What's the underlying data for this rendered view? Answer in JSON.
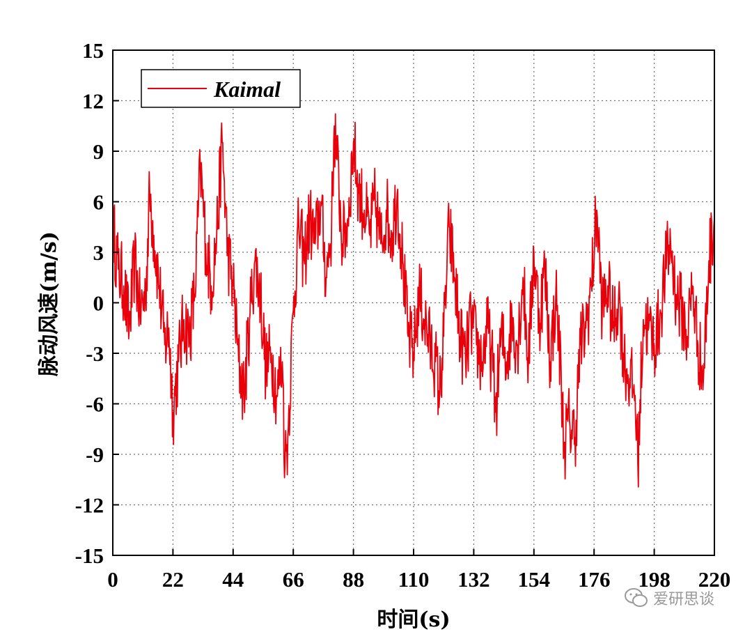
{
  "chart_data": {
    "type": "line",
    "title": "",
    "xlabel": "时间(s)",
    "ylabel": "脉动风速(m/s)",
    "xlim": [
      0,
      220
    ],
    "ylim": [
      -15,
      15
    ],
    "xticks": [
      0,
      22,
      44,
      66,
      88,
      110,
      132,
      154,
      176,
      198,
      220
    ],
    "yticks": [
      15,
      12,
      9,
      6,
      3,
      0,
      -3,
      -6,
      -9,
      -12,
      -15
    ],
    "grid": true,
    "legend_position": "top-left",
    "series": [
      {
        "name": "Kaimal",
        "color": "#e8000b",
        "x": [
          0,
          2,
          4,
          6,
          8,
          10,
          12,
          13.5,
          15,
          17,
          19,
          20.5,
          22,
          24,
          26,
          28,
          30,
          32,
          34,
          36,
          38,
          40,
          42,
          44,
          46,
          48,
          50,
          52,
          54,
          56,
          58,
          60,
          62,
          63,
          64,
          66,
          68,
          70,
          72,
          74,
          76,
          78,
          80,
          81,
          82,
          84,
          86,
          88,
          90,
          92,
          94,
          96,
          98,
          100,
          102,
          104,
          106,
          108,
          110,
          112,
          114,
          116,
          118,
          119.5,
          121,
          123,
          125,
          127,
          129,
          131,
          133,
          135,
          137,
          139,
          140,
          142,
          144,
          146,
          148,
          150,
          152,
          154,
          156,
          158,
          160,
          162,
          164,
          165,
          167,
          169,
          171,
          173,
          175,
          177,
          179,
          181,
          183,
          185,
          187,
          189,
          191,
          192,
          194,
          196,
          198,
          200,
          202,
          204,
          206,
          208,
          210,
          212,
          214,
          216,
          218,
          220
        ],
        "values": [
          4.5,
          2.0,
          1.0,
          -1.5,
          2.5,
          -0.5,
          0.5,
          6.5,
          4.0,
          1.0,
          -2.5,
          -1.5,
          -6.5,
          -3.5,
          -1.0,
          -2.0,
          0.5,
          8.0,
          3.5,
          1.0,
          4.0,
          9.5,
          3.0,
          1.0,
          -3.5,
          -5.5,
          -1.0,
          2.5,
          0.5,
          -4.0,
          -3.0,
          -5.5,
          -3.5,
          -9.5,
          -8.0,
          -0.5,
          4.5,
          2.5,
          5.0,
          3.5,
          6.0,
          1.5,
          4.5,
          10.5,
          8.5,
          3.5,
          5.0,
          9.5,
          6.5,
          5.5,
          4.0,
          6.0,
          3.5,
          5.5,
          4.0,
          6.5,
          2.5,
          -2.0,
          -3.0,
          0.5,
          -1.0,
          -2.5,
          -3.5,
          -5.5,
          -2.0,
          4.5,
          1.5,
          -2.0,
          -3.5,
          -1.0,
          -2.5,
          -3.5,
          -1.5,
          -4.0,
          -6.5,
          -2.0,
          -3.5,
          -1.0,
          -2.5,
          1.5,
          -3.5,
          3.0,
          -1.0,
          2.0,
          -3.5,
          0.5,
          -4.5,
          -8.5,
          -7.0,
          -8.0,
          -2.5,
          -1.5,
          1.0,
          5.5,
          -0.5,
          1.0,
          -1.5,
          0.5,
          -3.5,
          -4.5,
          -5.5,
          -9.5,
          -1.0,
          -1.5,
          -2.5,
          -1.0,
          2.0,
          3.5,
          0.5,
          -0.5,
          -2.0,
          1.0,
          -2.5,
          -4.5,
          2.5,
          5.0
        ]
      }
    ]
  },
  "watermark": {
    "text": "爱研思谈",
    "icon": "wechat-icon",
    "color": "#999999"
  }
}
